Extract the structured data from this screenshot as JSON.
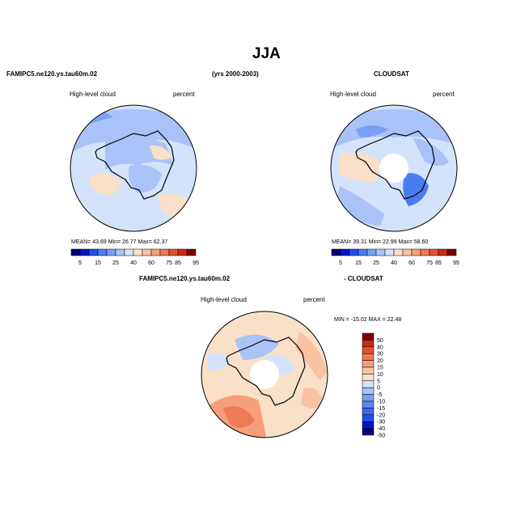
{
  "figure": {
    "title": "JJA",
    "model_name": "FAMIPC5.ne120.ys.tau60m.02",
    "years": "(yrs 2000-2003)",
    "obs_name": "CLOUDSAT",
    "diff_model": "FAMIPC5.ne120.ys.tau60m.02",
    "diff_obs": "- CLOUDSAT"
  },
  "panels": [
    {
      "id": "model",
      "variable": "High-level cloud",
      "units": "percent",
      "stats_text": "MEAN=   43.69   Min=   26.77   Max=   62.37",
      "pole_hole": false
    },
    {
      "id": "obs",
      "variable": "High-level cloud",
      "units": "percent",
      "stats_text": "MEAN=   39.31   Min=   22.99   Max=   58.60",
      "pole_hole": true
    },
    {
      "id": "diff",
      "variable": "High-level cloud",
      "units": "percent",
      "stats_text": "MIN =  -15.02  MAX =   22.48",
      "pole_hole": true
    }
  ],
  "colorbar_abs": {
    "colors": [
      "#00007f",
      "#0018c8",
      "#1f4fe8",
      "#4a7cf0",
      "#7aa0f5",
      "#a9c3f8",
      "#d3e3fb",
      "#fbe0c8",
      "#f8c3a3",
      "#f59f7c",
      "#ee7a56",
      "#e2512e",
      "#c82b12",
      "#7f0000"
    ],
    "labels": [
      "5",
      "15",
      "25",
      "40",
      "60",
      "75",
      "85",
      "95"
    ],
    "label_edges": [
      1,
      3,
      5,
      7,
      9,
      11,
      12,
      14
    ]
  },
  "colorbar_diff": {
    "colors": [
      "#00007f",
      "#0018c8",
      "#1f4fe8",
      "#3a66ee",
      "#5a86f2",
      "#7aa0f5",
      "#a9c3f8",
      "#d3e3fb",
      "#fbe0c8",
      "#f8c3a3",
      "#f59f7c",
      "#ee7a56",
      "#e2512e",
      "#c82b12",
      "#7f0000"
    ],
    "labels": [
      "50",
      "40",
      "30",
      "20",
      "15",
      "10",
      "5",
      "0",
      "-5",
      "-10",
      "-15",
      "-20",
      "-30",
      "-40",
      "-50"
    ]
  }
}
